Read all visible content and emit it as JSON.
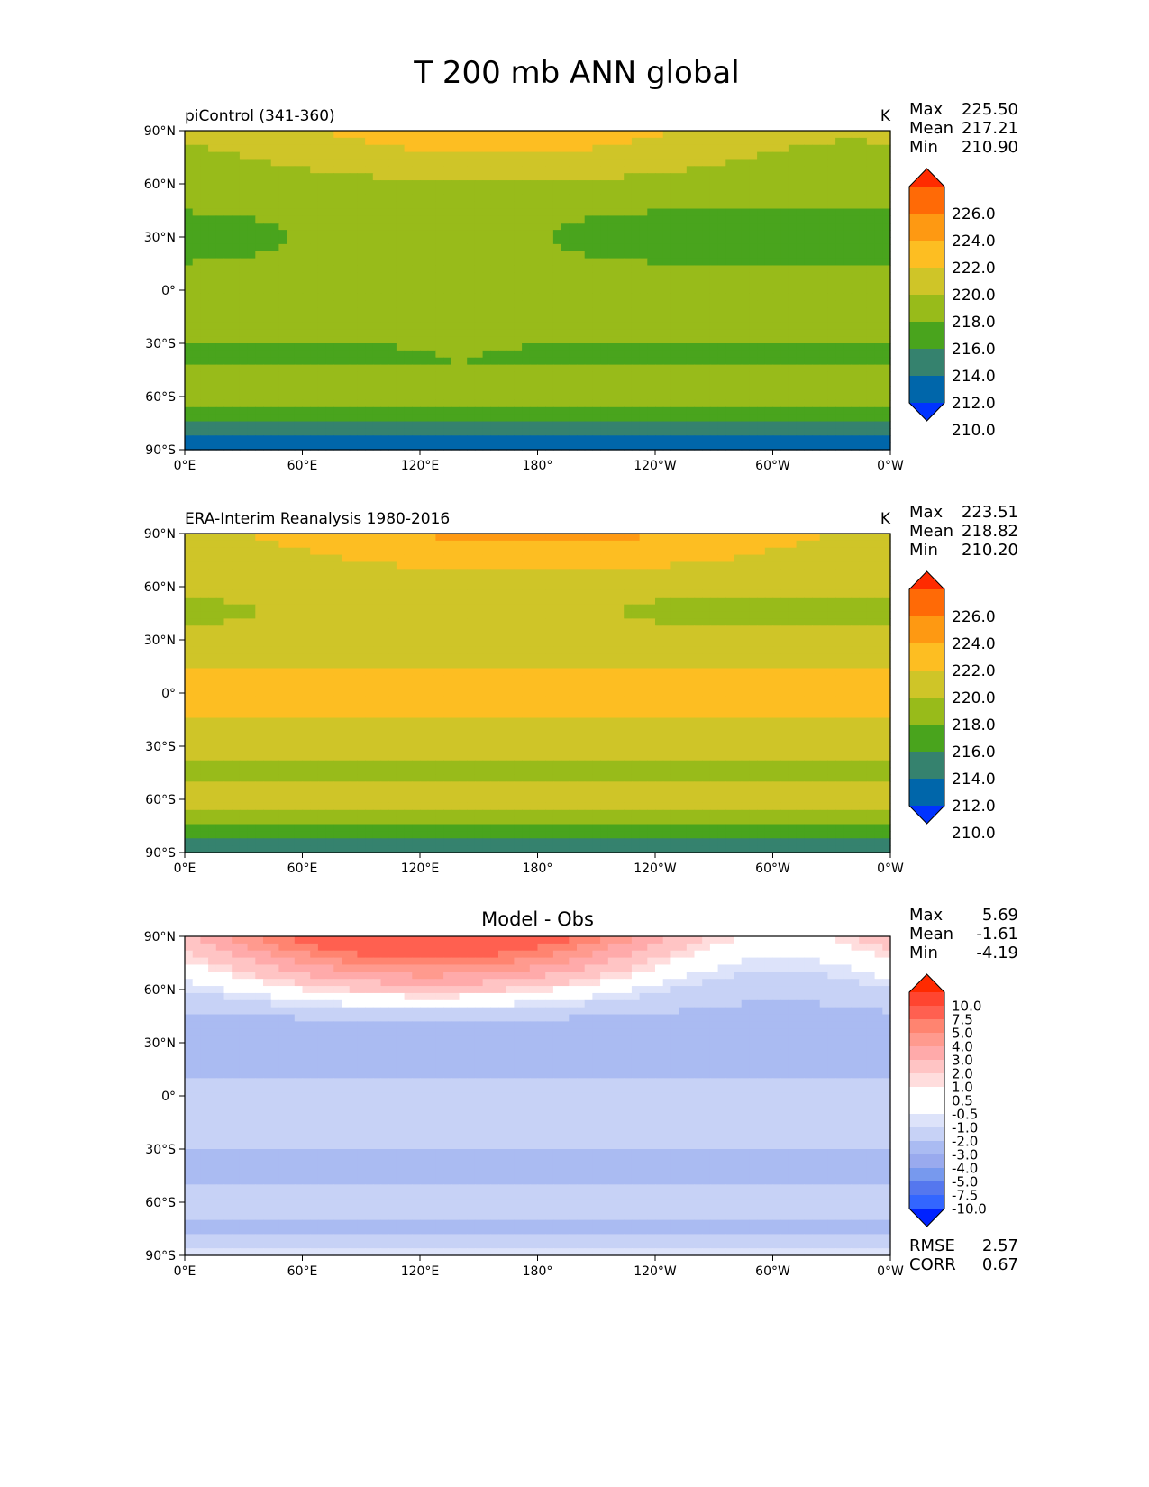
{
  "figure_title": "T 200 mb ANN global",
  "stat_labels": {
    "max": "Max",
    "mean": "Mean",
    "min": "Min",
    "rmse": "RMSE",
    "corr": "CORR"
  },
  "x_ticks": [
    "0°E",
    "60°E",
    "120°E",
    "180°",
    "120°W",
    "60°W",
    "0°W"
  ],
  "y_ticks": [
    "90°N",
    "60°N",
    "30°N",
    "0°",
    "30°S",
    "60°S",
    "90°S"
  ],
  "colors": {
    "absolute_levels": [
      "#0033ff",
      "#0066aa",
      "#35826e",
      "#49a41d",
      "#98bb1a",
      "#cfc528",
      "#fdbe22",
      "#fe9912",
      "#ff6a06",
      "#ff2b00"
    ],
    "difference_levels": [
      "#0022ff",
      "#3366ff",
      "#5577ee",
      "#7799ee",
      "#99aaee",
      "#aabbf2",
      "#c7d2f6",
      "#dde3fa",
      "#ffffff",
      "#ffffff",
      "#ffdddd",
      "#ffc4c4",
      "#ffaaaa",
      "#ff9a8e",
      "#ff8470",
      "#ff6050",
      "#ff4530",
      "#ff2a00"
    ]
  },
  "chart_data": [
    {
      "type": "heatmap",
      "panel": "test",
      "title": "",
      "left_title": "piControl (341-360)",
      "units": "K",
      "stats": {
        "max": "225.50",
        "mean": "217.21",
        "min": "210.90"
      },
      "colorbar_levels": [
        "226.0",
        "224.0",
        "222.0",
        "220.0",
        "218.0",
        "216.0",
        "214.0",
        "212.0",
        "210.0"
      ],
      "colorbar_extend": "both",
      "xlim": [
        0,
        360
      ],
      "ylim": [
        -90,
        90
      ]
    },
    {
      "type": "heatmap",
      "panel": "reference",
      "title": "",
      "left_title": "ERA-Interim Reanalysis 1980-2016",
      "units": "K",
      "stats": {
        "max": "223.51",
        "mean": "218.82",
        "min": "210.20"
      },
      "colorbar_levels": [
        "226.0",
        "224.0",
        "222.0",
        "220.0",
        "218.0",
        "216.0",
        "214.0",
        "212.0",
        "210.0"
      ],
      "colorbar_extend": "both",
      "xlim": [
        0,
        360
      ],
      "ylim": [
        -90,
        90
      ]
    },
    {
      "type": "heatmap",
      "panel": "difference",
      "title": "Model - Obs",
      "left_title": "",
      "units": "",
      "stats": {
        "max": "5.69",
        "mean": "-1.61",
        "min": "-4.19",
        "rmse": "2.57",
        "corr": "0.67"
      },
      "colorbar_levels": [
        "10.0",
        "7.5",
        "5.0",
        "4.0",
        "3.0",
        "2.0",
        "1.0",
        "0.5",
        "-0.5",
        "-1.0",
        "-2.0",
        "-3.0",
        "-4.0",
        "-5.0",
        "-7.5",
        "-10.0"
      ],
      "colorbar_extend": "both",
      "xlim": [
        0,
        360
      ],
      "ylim": [
        -90,
        90
      ]
    }
  ]
}
